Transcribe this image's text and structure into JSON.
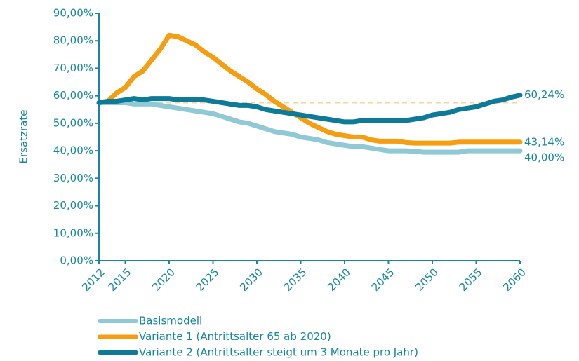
{
  "chart_data": {
    "type": "line",
    "ylabel": "Ersatzrate",
    "x": [
      2012,
      2013,
      2014,
      2015,
      2016,
      2017,
      2018,
      2019,
      2020,
      2021,
      2022,
      2023,
      2024,
      2025,
      2026,
      2027,
      2028,
      2029,
      2030,
      2031,
      2032,
      2033,
      2034,
      2035,
      2036,
      2037,
      2038,
      2039,
      2040,
      2041,
      2042,
      2043,
      2044,
      2045,
      2046,
      2047,
      2048,
      2049,
      2050,
      2051,
      2052,
      2053,
      2054,
      2055,
      2056,
      2057,
      2058,
      2059,
      2060
    ],
    "xlim": [
      2012,
      2060
    ],
    "xticks": [
      2012,
      2015,
      2020,
      2025,
      2030,
      2035,
      2040,
      2045,
      2050,
      2055,
      2060
    ],
    "ylim": [
      0,
      90
    ],
    "yticks": [
      {
        "value": 0,
        "label": "0,00%"
      },
      {
        "value": 10,
        "label": "10,00%"
      },
      {
        "value": 20,
        "label": "20,00%"
      },
      {
        "value": 30,
        "label": "30,00%"
      },
      {
        "value": 40,
        "label": "40,00%"
      },
      {
        "value": 50,
        "label": "50,00%"
      },
      {
        "value": 60,
        "label": "60,00%"
      },
      {
        "value": 70,
        "label": "70,00%"
      },
      {
        "value": 80,
        "label": "80,00%"
      },
      {
        "value": 90,
        "label": "90,00%"
      }
    ],
    "reference_line": {
      "value": 57.5,
      "color": "#f9d49a"
    },
    "series": [
      {
        "name": "Basismodell",
        "color": "#8ec9d5",
        "values": [
          57.5,
          57.5,
          57.5,
          57.5,
          57,
          57,
          57,
          56.5,
          56,
          55.5,
          55,
          54.5,
          54,
          53.5,
          52.5,
          51.5,
          50.5,
          50,
          49,
          48,
          47,
          46.5,
          46,
          45,
          44.5,
          44,
          43,
          42.5,
          42,
          41.5,
          41.5,
          41,
          40.5,
          40,
          40,
          40,
          39.8,
          39.5,
          39.5,
          39.5,
          39.5,
          39.5,
          40,
          40,
          40,
          40,
          40,
          40,
          40
        ],
        "value_labels": [
          null,
          null,
          null,
          null,
          null,
          null,
          null,
          null,
          null,
          null,
          null,
          null,
          null,
          null,
          null,
          null,
          null,
          null,
          null,
          null,
          null,
          null,
          null,
          null,
          null,
          null,
          null,
          null,
          null,
          null,
          null,
          null,
          null,
          null,
          null,
          null,
          null,
          null,
          null,
          null,
          null,
          null,
          null,
          null,
          null,
          null,
          null,
          null,
          "40,00%"
        ]
      },
      {
        "name": "Variante 1 (Antrittsalter 65 ab 2020)",
        "color": "#f59e12",
        "values": [
          57.5,
          58,
          61,
          63,
          67,
          69,
          73,
          77,
          82,
          81.5,
          80,
          78.5,
          76,
          74,
          71.5,
          69,
          67,
          65,
          62.5,
          60.5,
          58,
          56,
          54,
          52,
          50,
          48.5,
          47,
          46,
          45.5,
          45,
          45,
          44,
          43.5,
          43.5,
          43.5,
          43,
          42.8,
          42.8,
          42.8,
          42.8,
          42.8,
          43.14,
          43.14,
          43.14,
          43.14,
          43.14,
          43.14,
          43.14,
          43.14
        ],
        "value_labels": [
          null,
          null,
          null,
          null,
          null,
          null,
          null,
          null,
          null,
          null,
          null,
          null,
          null,
          null,
          null,
          null,
          null,
          null,
          null,
          null,
          null,
          null,
          null,
          null,
          null,
          null,
          null,
          null,
          null,
          null,
          null,
          null,
          null,
          null,
          null,
          null,
          null,
          null,
          null,
          null,
          null,
          null,
          null,
          null,
          null,
          null,
          null,
          null,
          "43,14%"
        ]
      },
      {
        "name": "Variante 2 (Antrittsalter steigt um 3 Monate pro Jahr)",
        "color": "#0d7a97",
        "values": [
          57.5,
          58,
          58,
          58.5,
          59,
          58.5,
          59,
          59,
          59,
          58.5,
          58.5,
          58.5,
          58.5,
          58,
          57.5,
          57,
          56.5,
          56.5,
          56,
          55,
          54.5,
          54,
          53.5,
          53,
          52.5,
          52,
          51.5,
          51,
          50.5,
          50.5,
          51,
          51,
          51,
          51,
          51,
          51,
          51.5,
          52,
          53,
          53.5,
          54,
          55,
          55.5,
          56,
          57,
          58,
          58.5,
          59.5,
          60.24
        ],
        "value_labels": [
          null,
          null,
          null,
          null,
          null,
          null,
          null,
          null,
          null,
          null,
          null,
          null,
          null,
          null,
          null,
          null,
          null,
          null,
          null,
          null,
          null,
          null,
          null,
          null,
          null,
          null,
          null,
          null,
          null,
          null,
          null,
          null,
          null,
          null,
          null,
          null,
          null,
          null,
          null,
          null,
          null,
          null,
          null,
          null,
          null,
          null,
          null,
          null,
          "60,24%"
        ]
      }
    ]
  }
}
